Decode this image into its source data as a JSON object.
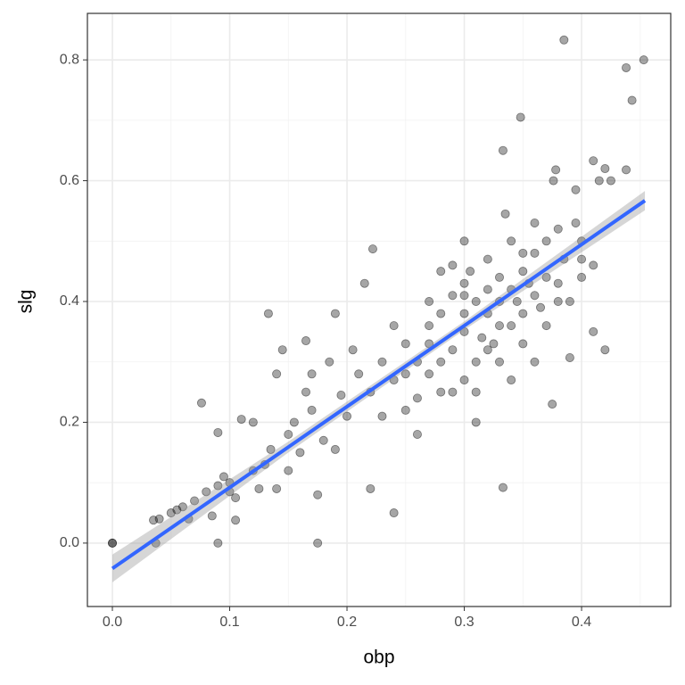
{
  "chart_data": {
    "type": "scatter",
    "xlabel": "obp",
    "ylabel": "slg",
    "xlim": [
      -0.0213,
      0.476
    ],
    "ylim": [
      -0.105,
      0.877
    ],
    "xticks": [
      {
        "value": 0,
        "label": "0.0"
      },
      0.1,
      0.2,
      0.3,
      0.4
    ],
    "yticks": [
      {
        "value": 0,
        "label": "0.0"
      },
      0.2,
      0.4,
      0.6,
      0.8
    ],
    "minor_xticks": [
      0.05,
      0.15,
      0.25,
      0.35,
      0.45
    ],
    "minor_yticks": [
      0.1,
      0.3,
      0.5,
      0.7
    ],
    "grid": true,
    "color": "#000000",
    "x": [
      0,
      0,
      0.035,
      0.04,
      0.037,
      0.05,
      0.055,
      0.06,
      0.065,
      0.07,
      0.076,
      0.08,
      0.085,
      0.09,
      0.09,
      0.09,
      0.095,
      0.1,
      0.1,
      0.105,
      0.105,
      0.11,
      0.12,
      0.12,
      0.125,
      0.13,
      0.133,
      0.135,
      0.14,
      0.14,
      0.145,
      0.15,
      0.15,
      0.155,
      0.16,
      0.165,
      0.165,
      0.17,
      0.17,
      0.175,
      0.175,
      0.18,
      0.185,
      0.19,
      0.19,
      0.195,
      0.2,
      0.205,
      0.21,
      0.215,
      0.22,
      0.222,
      0.23,
      0.24,
      0.24,
      0.25,
      0.26,
      0.27,
      0.28,
      0.29,
      0.3,
      0.31,
      0.32,
      0.333,
      0.333,
      0.335,
      0.348,
      0.36,
      0.375,
      0.376,
      0.378,
      0.38,
      0.385,
      0.39,
      0.395,
      0.41,
      0.41,
      0.415,
      0.42,
      0.42,
      0.425,
      0.438,
      0.438,
      0.443,
      0.453,
      0.4,
      0.39,
      0.37,
      0.35,
      0.34,
      0.33,
      0.31,
      0.3,
      0.29,
      0.28,
      0.27,
      0.26,
      0.25,
      0.32,
      0.36,
      0.34,
      0.33,
      0.35,
      0.3,
      0.28,
      0.31,
      0.35,
      0.38,
      0.4,
      0.37,
      0.32,
      0.33,
      0.3,
      0.29,
      0.36,
      0.37,
      0.345,
      0.315,
      0.325,
      0.34,
      0.305,
      0.355,
      0.365,
      0.385,
      0.395,
      0.27,
      0.26,
      0.24,
      0.22,
      0.23,
      0.25,
      0.28,
      0.3,
      0.31,
      0.32,
      0.34,
      0.36,
      0.38,
      0.4,
      0.41,
      0.33,
      0.35,
      0.3,
      0.27,
      0.29
    ],
    "y": [
      0,
      0,
      0.038,
      0.04,
      0,
      0.05,
      0.055,
      0.06,
      0.04,
      0.07,
      0.232,
      0.085,
      0.045,
      0,
      0.095,
      0.183,
      0.11,
      0.1,
      0.085,
      0.038,
      0.075,
      0.205,
      0.2,
      0.12,
      0.09,
      0.13,
      0.38,
      0.155,
      0.09,
      0.28,
      0.32,
      0.12,
      0.18,
      0.2,
      0.15,
      0.25,
      0.335,
      0.28,
      0.22,
      0,
      0.08,
      0.17,
      0.3,
      0.38,
      0.155,
      0.245,
      0.21,
      0.32,
      0.28,
      0.43,
      0.09,
      0.487,
      0.3,
      0.05,
      0.36,
      0.28,
      0.18,
      0.33,
      0.45,
      0.25,
      0.5,
      0.3,
      0.42,
      0.65,
      0.092,
      0.545,
      0.705,
      0.53,
      0.23,
      0.6,
      0.618,
      0.52,
      0.833,
      0.307,
      0.585,
      0.35,
      0.633,
      0.6,
      0.32,
      0.62,
      0.6,
      0.787,
      0.618,
      0.733,
      0.8,
      0.47,
      0.4,
      0.44,
      0.38,
      0.42,
      0.36,
      0.4,
      0.35,
      0.32,
      0.38,
      0.28,
      0.3,
      0.22,
      0.47,
      0.48,
      0.5,
      0.3,
      0.33,
      0.43,
      0.25,
      0.25,
      0.45,
      0.43,
      0.5,
      0.5,
      0.38,
      0.44,
      0.38,
      0.41,
      0.41,
      0.36,
      0.4,
      0.34,
      0.33,
      0.36,
      0.45,
      0.43,
      0.39,
      0.47,
      0.53,
      0.36,
      0.24,
      0.27,
      0.25,
      0.21,
      0.33,
      0.3,
      0.27,
      0.2,
      0.32,
      0.27,
      0.3,
      0.4,
      0.44,
      0.46,
      0.4,
      0.48,
      0.41,
      0.4,
      0.46
    ],
    "fit": {
      "color": "#3366ff",
      "band_color": "#999999",
      "x": [
        0,
        0.15,
        0.3,
        0.454
      ],
      "y": [
        -0.042,
        0.159,
        0.36,
        0.567
      ],
      "lower": [
        -0.065,
        0.15,
        0.353,
        0.551
      ],
      "upper": [
        -0.019,
        0.168,
        0.367,
        0.583
      ]
    }
  }
}
